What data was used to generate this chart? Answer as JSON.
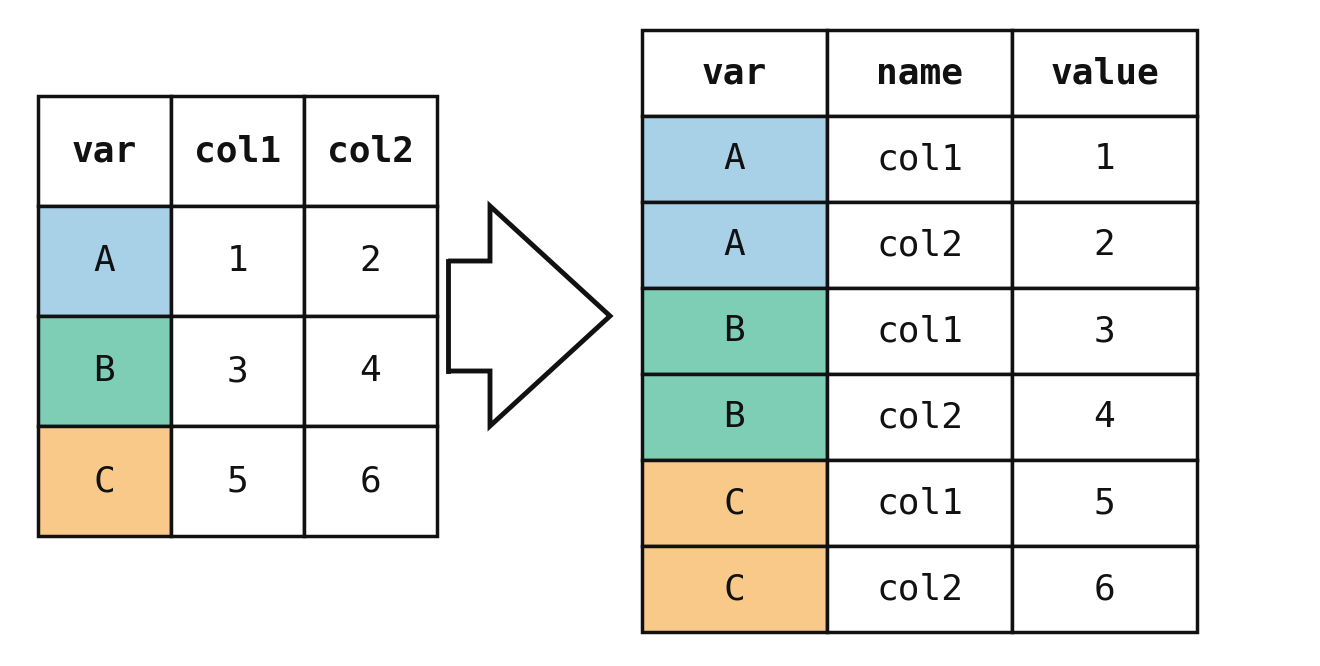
{
  "bg_color": "#ffffff",
  "color_A": "#a8d1e7",
  "color_B": "#7ecdb5",
  "color_C": "#f9c98a",
  "color_header": "#ffffff",
  "border_color": "#111111",
  "text_color": "#111111",
  "left_table": {
    "headers": [
      "var",
      "col1",
      "col2"
    ],
    "rows": [
      {
        "var": "A",
        "col1": "1",
        "col2": "2",
        "color": "#a8d1e7"
      },
      {
        "var": "B",
        "col1": "3",
        "col2": "4",
        "color": "#7ecdb5"
      },
      {
        "var": "C",
        "col1": "5",
        "col2": "6",
        "color": "#f9c98a"
      }
    ]
  },
  "right_table": {
    "headers": [
      "var",
      "name",
      "value"
    ],
    "rows": [
      {
        "var": "A",
        "name": "col1",
        "value": "1",
        "color": "#a8d1e7"
      },
      {
        "var": "A",
        "name": "col2",
        "value": "2",
        "color": "#a8d1e7"
      },
      {
        "var": "B",
        "name": "col1",
        "value": "3",
        "color": "#7ecdb5"
      },
      {
        "var": "B",
        "name": "col2",
        "value": "4",
        "color": "#7ecdb5"
      },
      {
        "var": "C",
        "name": "col1",
        "value": "5",
        "color": "#f9c98a"
      },
      {
        "var": "C",
        "name": "col2",
        "value": "6",
        "color": "#f9c98a"
      }
    ]
  },
  "font_size": 26,
  "header_font_size": 26,
  "lw": 2.5
}
